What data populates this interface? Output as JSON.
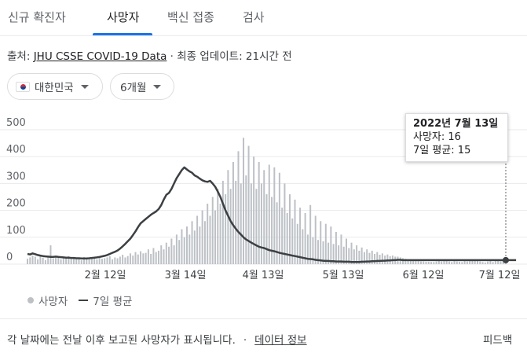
{
  "tabs": [
    {
      "label": "신규 확진자"
    },
    {
      "label": "사망자",
      "active": true
    },
    {
      "label": "백신 접종"
    },
    {
      "label": "검사"
    }
  ],
  "source": {
    "prefix": "출처: ",
    "link": "JHU CSSE COVID-19 Data",
    "suffix": " · 최종 업데이트: 21시간 전"
  },
  "filters": {
    "region": "대한민국",
    "period": "6개월"
  },
  "tooltip": {
    "date": "2022년 7월 13일",
    "deaths": "사망자: 16",
    "average": "7일 평균: 15"
  },
  "legend": {
    "deaths": "사망자",
    "average": "7일 평균"
  },
  "footer": {
    "note": "각 날짜에는 전날 이후 보고된 사망자가 표시됩니다.",
    "separator": "·",
    "data_link": "데이터 정보",
    "feedback": "피드백"
  },
  "colors": {
    "bar": "#bdc1c6",
    "average_line": "#3c4043",
    "accent": "#1a73e8",
    "grid": "#e8eaed"
  },
  "chart_data": {
    "type": "bar",
    "x_range": [
      "2022-01-13",
      "2022-07-13"
    ],
    "xticks": [
      "2월 12일",
      "3월 14일",
      "4월 13일",
      "5월 13일",
      "6월 12일",
      "7월 12일"
    ],
    "yticks": [
      "0",
      "100",
      "200",
      "300",
      "400",
      "500"
    ],
    "ylim": [
      0,
      500
    ],
    "grid": true,
    "legend": "bottom-left",
    "series": [
      {
        "name": "사망자",
        "values": [
          20,
          25,
          32,
          28,
          18,
          30,
          24,
          15,
          28,
          70,
          22,
          30,
          25,
          18,
          26,
          22,
          30,
          20,
          25,
          18,
          22,
          15,
          26,
          20,
          18,
          22,
          25,
          18,
          28,
          20,
          22,
          25,
          30,
          18,
          25,
          22,
          28,
          35,
          25,
          30,
          40,
          32,
          45,
          36,
          48,
          40,
          42,
          55,
          38,
          60,
          45,
          50,
          70,
          55,
          80,
          65,
          95,
          70,
          110,
          90,
          130,
          100,
          140,
          110,
          160,
          125,
          180,
          140,
          200,
          160,
          225,
          180,
          250,
          200,
          280,
          225,
          310,
          260,
          350,
          280,
          380,
          310,
          420,
          300,
          470,
          330,
          440,
          300,
          400,
          280,
          380,
          300,
          350,
          260,
          370,
          250,
          360,
          230,
          340,
          210,
          300,
          190,
          260,
          170,
          240,
          150,
          210,
          130,
          190,
          110,
          220,
          100,
          180,
          90,
          160,
          85,
          150,
          80,
          140,
          75,
          120,
          70,
          110,
          65,
          95,
          60,
          80,
          55,
          70,
          50,
          62,
          45,
          55,
          42,
          50,
          38,
          45,
          35,
          40,
          32,
          36,
          30,
          32,
          28,
          28,
          25,
          22,
          20,
          18,
          15,
          14,
          12,
          12,
          10,
          10,
          9,
          9,
          8,
          8,
          10,
          12,
          10,
          14,
          12,
          10,
          8,
          12,
          10,
          9,
          8,
          12,
          10,
          14,
          12,
          18,
          16,
          10,
          8,
          6,
          10,
          12,
          8,
          12,
          14,
          10,
          12,
          16
        ]
      },
      {
        "name": "7일 평균",
        "values": [
          38,
          36,
          40,
          37,
          34,
          32,
          30,
          29,
          28,
          27,
          27,
          28,
          27,
          26,
          25,
          24,
          24,
          23,
          23,
          22,
          22,
          21,
          21,
          21,
          22,
          23,
          24,
          25,
          27,
          29,
          31,
          34,
          38,
          42,
          46,
          51,
          58,
          66,
          75,
          85,
          95,
          108,
          122,
          138,
          152,
          160,
          168,
          176,
          184,
          190,
          196,
          205,
          220,
          240,
          258,
          265,
          280,
          300,
          320,
          335,
          350,
          360,
          352,
          345,
          340,
          330,
          325,
          318,
          312,
          308,
          306,
          310,
          300,
          288,
          270,
          250,
          225,
          200,
          180,
          160,
          145,
          132,
          120,
          110,
          100,
          92,
          86,
          80,
          75,
          70,
          65,
          62,
          60,
          56,
          52,
          50,
          48,
          45,
          42,
          40,
          38,
          36,
          34,
          32,
          30,
          28,
          26,
          24,
          22,
          20,
          19,
          18,
          16,
          15,
          14,
          13,
          12,
          12,
          11,
          11,
          10,
          10,
          10,
          9,
          9,
          9,
          8,
          8,
          8,
          8,
          9,
          9,
          10,
          10,
          11,
          11,
          12,
          12,
          13,
          13,
          14,
          14,
          15,
          15,
          16,
          16,
          15,
          15,
          15,
          15,
          15,
          15,
          15,
          15,
          15,
          15,
          15,
          15,
          15,
          15,
          15,
          15,
          15,
          15,
          15,
          15,
          15,
          15,
          15,
          15,
          15,
          15,
          15,
          15,
          15,
          15,
          15,
          15,
          15,
          15,
          15,
          15,
          15,
          15,
          15,
          15,
          15,
          15,
          15,
          15,
          15
        ]
      }
    ]
  }
}
